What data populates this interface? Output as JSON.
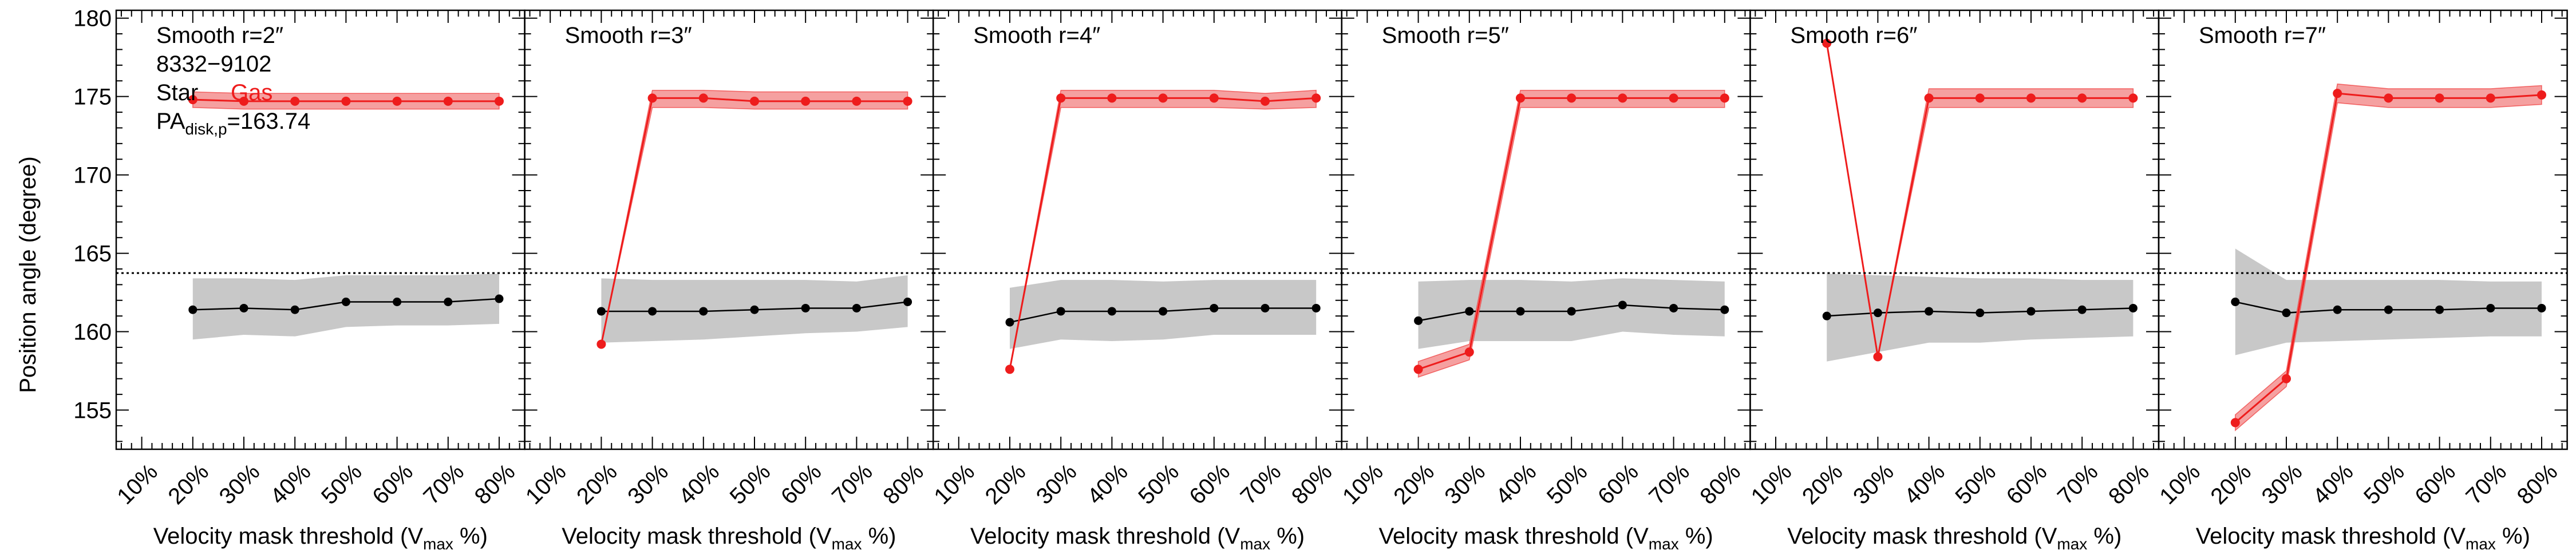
{
  "figure": {
    "ylabel": "Position angle (degree)",
    "xlabel_main": "Velocity mask threshold (V",
    "xlabel_sub": "max",
    "xlabel_tail": " %)",
    "legend_star": "Star",
    "legend_gas": "Gas",
    "galaxy_id": "8332−9102",
    "pa_main": "PA",
    "pa_sub": "disk,p",
    "pa_value": "=163.74",
    "x_ticks": [
      "10%",
      "20%",
      "30%",
      "40%",
      "50%",
      "60%",
      "70%",
      "80%"
    ],
    "y_ticks": [
      "155",
      "160",
      "165",
      "170",
      "175",
      "180"
    ]
  },
  "colors": {
    "star": "#000000",
    "star_band": "#c8c8c8",
    "gas": "#ee1c1c",
    "gas_band": "#f5a0a0",
    "pa_line": "#000000"
  },
  "chart_data": [
    {
      "type": "line",
      "title": "Smooth r=2″",
      "x": [
        20,
        30,
        40,
        50,
        60,
        70,
        80
      ],
      "xlim": [
        5,
        85
      ],
      "ylim": [
        152.5,
        180.5
      ],
      "pa_disk": 163.74,
      "series": [
        {
          "name": "Star",
          "values": [
            161.4,
            161.5,
            161.4,
            161.9,
            161.9,
            161.9,
            162.1
          ],
          "band_low": [
            159.5,
            159.8,
            159.7,
            160.3,
            160.4,
            160.4,
            160.5
          ],
          "band_high": [
            163.4,
            163.4,
            163.3,
            163.6,
            163.6,
            163.6,
            163.7
          ]
        },
        {
          "name": "Gas",
          "values": [
            174.8,
            174.7,
            174.7,
            174.7,
            174.7,
            174.7,
            174.7
          ],
          "band_low": [
            174.3,
            174.2,
            174.2,
            174.2,
            174.2,
            174.2,
            174.2
          ],
          "band_high": [
            175.3,
            175.2,
            175.2,
            175.2,
            175.2,
            175.2,
            175.2
          ]
        }
      ]
    },
    {
      "type": "line",
      "title": "Smooth r=3″",
      "x": [
        20,
        30,
        40,
        50,
        60,
        70,
        80
      ],
      "xlim": [
        5,
        85
      ],
      "ylim": [
        152.5,
        180.5
      ],
      "pa_disk": 163.74,
      "series": [
        {
          "name": "Star",
          "values": [
            161.3,
            161.3,
            161.3,
            161.4,
            161.5,
            161.5,
            161.9
          ],
          "band_low": [
            159.3,
            159.4,
            159.5,
            159.7,
            159.9,
            160.0,
            160.3
          ],
          "band_high": [
            163.4,
            163.3,
            163.3,
            163.3,
            163.3,
            163.2,
            163.6
          ]
        },
        {
          "name": "Gas",
          "values": [
            159.2,
            174.9,
            174.9,
            174.7,
            174.7,
            174.7,
            174.7
          ],
          "band_low": [
            159.2,
            174.3,
            174.3,
            174.2,
            174.2,
            174.2,
            174.2
          ],
          "band_high": [
            159.2,
            175.4,
            175.4,
            175.3,
            175.3,
            175.3,
            175.3
          ]
        }
      ]
    },
    {
      "type": "line",
      "title": "Smooth r=4″",
      "x": [
        20,
        30,
        40,
        50,
        60,
        70,
        80
      ],
      "xlim": [
        5,
        85
      ],
      "ylim": [
        152.5,
        180.5
      ],
      "pa_disk": 163.74,
      "series": [
        {
          "name": "Star",
          "values": [
            160.6,
            161.3,
            161.3,
            161.3,
            161.5,
            161.5,
            161.5
          ],
          "band_low": [
            158.9,
            159.5,
            159.4,
            159.5,
            159.8,
            159.8,
            159.8
          ],
          "band_high": [
            162.8,
            163.3,
            163.3,
            163.2,
            163.3,
            163.3,
            163.3
          ]
        },
        {
          "name": "Gas",
          "values": [
            157.6,
            174.9,
            174.9,
            174.9,
            174.9,
            174.7,
            174.9
          ],
          "band_low": [
            157.6,
            174.3,
            174.3,
            174.3,
            174.3,
            174.2,
            174.3
          ],
          "band_high": [
            157.6,
            175.4,
            175.4,
            175.4,
            175.4,
            175.2,
            175.4
          ]
        }
      ]
    },
    {
      "type": "line",
      "title": "Smooth r=5″",
      "x": [
        20,
        30,
        40,
        50,
        60,
        70,
        80
      ],
      "xlim": [
        5,
        85
      ],
      "ylim": [
        152.5,
        180.5
      ],
      "pa_disk": 163.74,
      "series": [
        {
          "name": "Star",
          "values": [
            160.7,
            161.3,
            161.3,
            161.3,
            161.7,
            161.5,
            161.4
          ],
          "band_low": [
            158.9,
            159.4,
            159.4,
            159.4,
            160.0,
            159.8,
            159.7
          ],
          "band_high": [
            163.2,
            163.3,
            163.3,
            163.2,
            163.4,
            163.3,
            163.2
          ]
        },
        {
          "name": "Gas",
          "values": [
            157.6,
            158.7,
            174.9,
            174.9,
            174.9,
            174.9,
            174.9
          ],
          "band_low": [
            157.1,
            158.2,
            174.3,
            174.3,
            174.3,
            174.3,
            174.3
          ],
          "band_high": [
            158.1,
            159.2,
            175.4,
            175.4,
            175.4,
            175.4,
            175.4
          ]
        }
      ]
    },
    {
      "type": "line",
      "title": "Smooth r=6″",
      "x": [
        20,
        30,
        40,
        50,
        60,
        70,
        80
      ],
      "xlim": [
        5,
        85
      ],
      "ylim": [
        152.5,
        180.5
      ],
      "pa_disk": 163.74,
      "series": [
        {
          "name": "Star",
          "values": [
            161.0,
            161.2,
            161.3,
            161.2,
            161.3,
            161.4,
            161.5
          ],
          "band_low": [
            158.1,
            158.7,
            159.3,
            159.3,
            159.5,
            159.6,
            159.7
          ],
          "band_high": [
            163.7,
            163.6,
            163.5,
            163.4,
            163.4,
            163.3,
            163.3
          ]
        },
        {
          "name": "Gas",
          "values": [
            178.4,
            158.4,
            174.9,
            174.9,
            174.9,
            174.9,
            174.9
          ],
          "band_low": [
            178.4,
            158.4,
            174.3,
            174.3,
            174.3,
            174.3,
            174.3
          ],
          "band_high": [
            178.4,
            158.4,
            175.5,
            175.5,
            175.5,
            175.5,
            175.5
          ]
        }
      ]
    },
    {
      "type": "line",
      "title": "Smooth r=7″",
      "x": [
        20,
        30,
        40,
        50,
        60,
        70,
        80
      ],
      "xlim": [
        5,
        85
      ],
      "ylim": [
        152.5,
        180.5
      ],
      "pa_disk": 163.74,
      "series": [
        {
          "name": "Star",
          "values": [
            161.9,
            161.2,
            161.4,
            161.4,
            161.4,
            161.5,
            161.5
          ],
          "band_low": [
            158.5,
            159.3,
            159.4,
            159.5,
            159.6,
            159.7,
            159.7
          ],
          "band_high": [
            165.3,
            163.3,
            163.3,
            163.3,
            163.3,
            163.2,
            163.2
          ]
        },
        {
          "name": "Gas",
          "values": [
            154.2,
            157.0,
            175.2,
            174.9,
            174.9,
            174.9,
            175.1
          ],
          "band_low": [
            153.7,
            156.5,
            174.6,
            174.3,
            174.3,
            174.3,
            174.5
          ],
          "band_high": [
            154.7,
            157.5,
            175.8,
            175.5,
            175.5,
            175.5,
            175.7
          ]
        }
      ]
    }
  ]
}
